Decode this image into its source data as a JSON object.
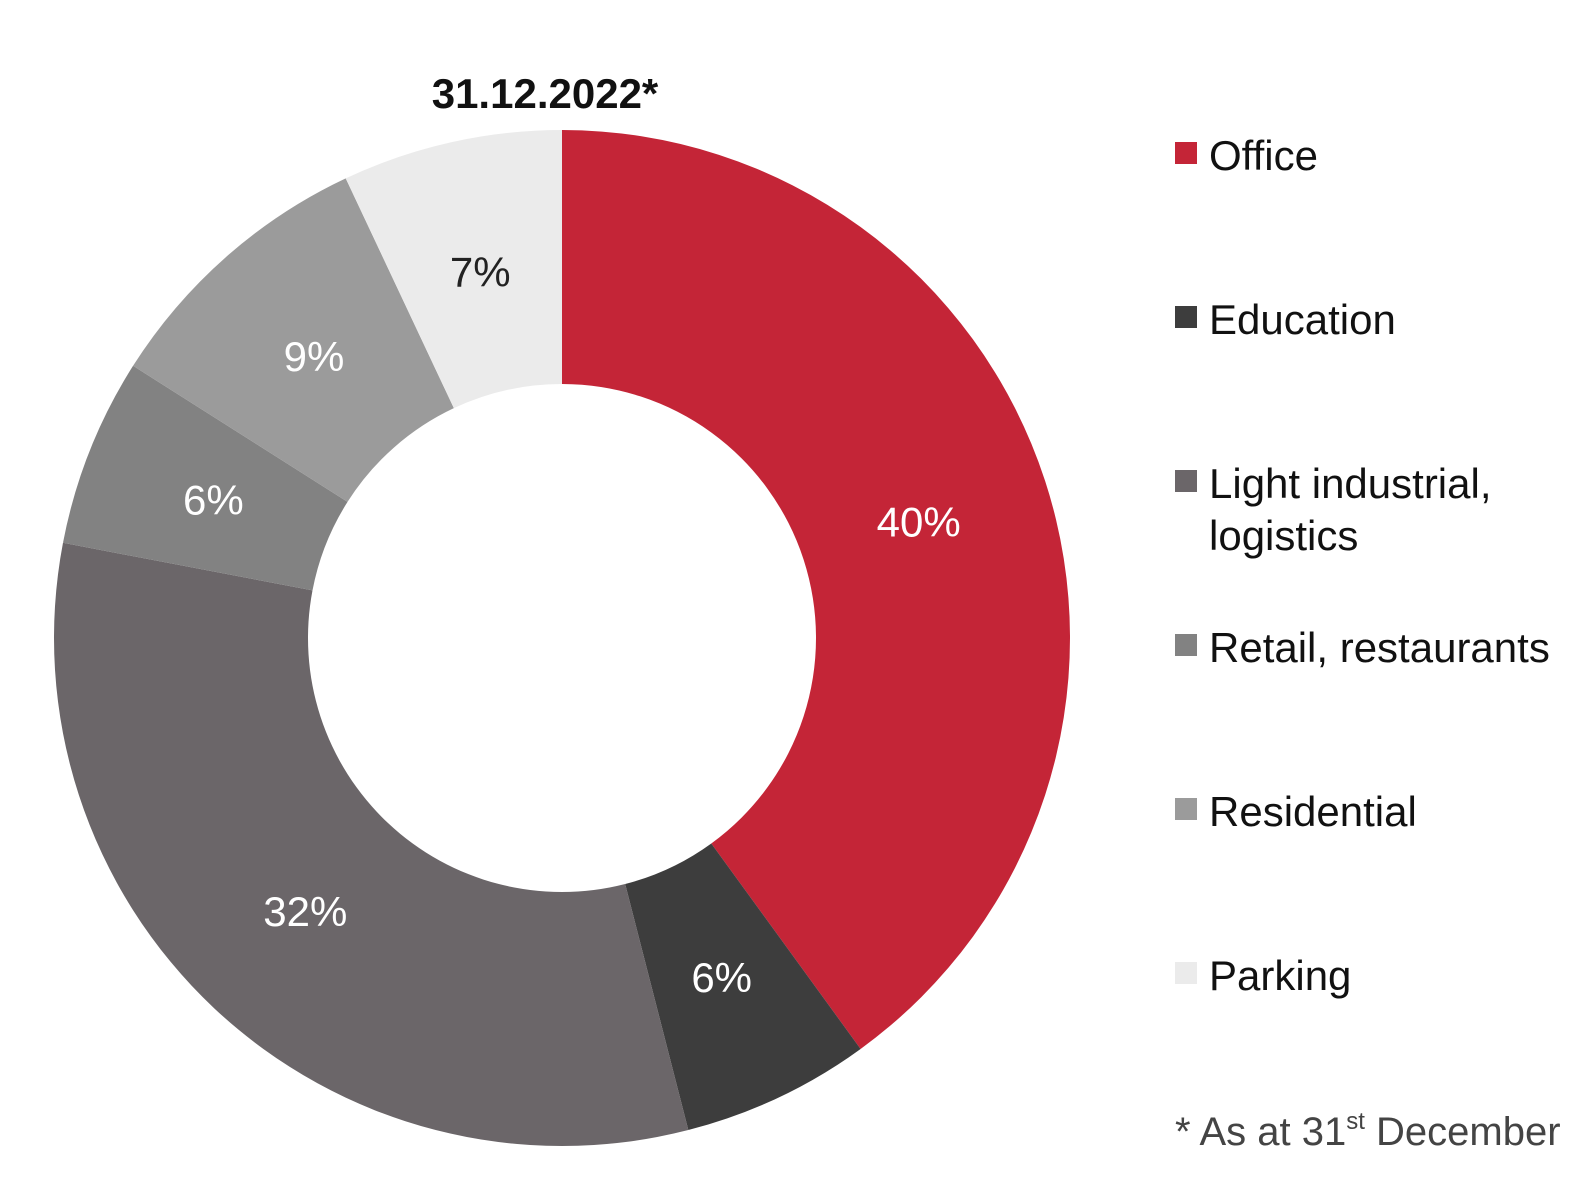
{
  "chart_data": {
    "type": "pie",
    "title": "31.12.2022*",
    "slices": [
      {
        "label": "Office",
        "value": 40,
        "display": "40%",
        "color": "#c42537",
        "label_color": "#ffffff"
      },
      {
        "label": "Education",
        "value": 6,
        "display": "6%",
        "color": "#3d3d3d",
        "label_color": "#ffffff"
      },
      {
        "label": "Light industrial,\nlogistics",
        "value": 32,
        "display": "32%",
        "color": "#6b6669",
        "label_color": "#ffffff"
      },
      {
        "label": "Retail, restaurants",
        "value": 6,
        "display": "6%",
        "color": "#828282",
        "label_color": "#ffffff"
      },
      {
        "label": "Residential",
        "value": 9,
        "display": "9%",
        "color": "#9b9b9b",
        "label_color": "#ffffff"
      },
      {
        "label": "Parking",
        "value": 7,
        "display": "7%",
        "color": "#ebebeb",
        "label_color": "#222222"
      }
    ],
    "legend_position": "right"
  },
  "footnote": {
    "prefix": "* As at 31",
    "superscript": "st",
    "suffix": " December"
  }
}
